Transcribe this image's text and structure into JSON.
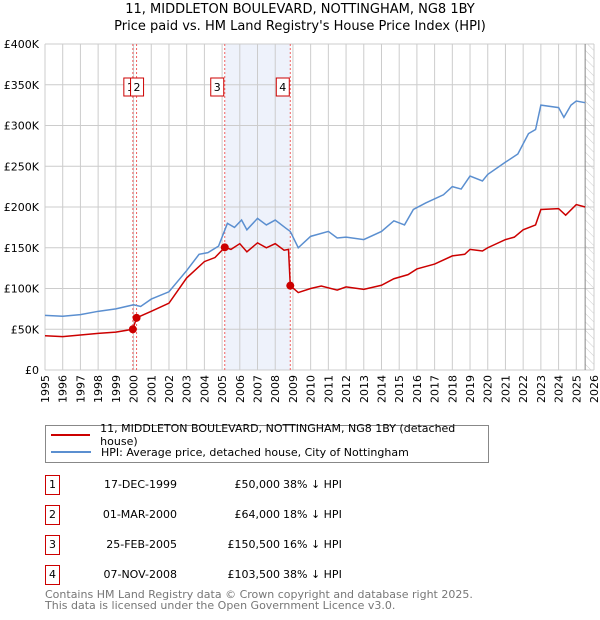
{
  "chart_data": {
    "type": "line",
    "title": "11, MIDDLETON BOULEVARD, NOTTINGHAM, NG8 1BY",
    "subtitle": "Price paid vs. HM Land Registry's House Price Index (HPI)",
    "xlim": [
      1995,
      2026
    ],
    "ylim": [
      0,
      400000
    ],
    "xticks": [
      "1995",
      "1996",
      "1997",
      "1998",
      "1999",
      "2000",
      "2001",
      "2002",
      "2003",
      "2004",
      "2005",
      "2006",
      "2007",
      "2008",
      "2009",
      "2010",
      "2011",
      "2012",
      "2013",
      "2014",
      "2015",
      "2016",
      "2017",
      "2018",
      "2019",
      "2020",
      "2021",
      "2022",
      "2023",
      "2024",
      "2025",
      "2026"
    ],
    "yticks": [
      {
        "v": 0,
        "label": "£0"
      },
      {
        "v": 50000,
        "label": "£50K"
      },
      {
        "v": 100000,
        "label": "£100K"
      },
      {
        "v": 150000,
        "label": "£150K"
      },
      {
        "v": 200000,
        "label": "£200K"
      },
      {
        "v": 250000,
        "label": "£250K"
      },
      {
        "v": 300000,
        "label": "£300K"
      },
      {
        "v": 350000,
        "label": "£350K"
      },
      {
        "v": 400000,
        "label": "£400K"
      }
    ],
    "grid": true,
    "series": [
      {
        "name": "11, MIDDLETON BOULEVARD, NOTTINGHAM, NG8 1BY (detached house)",
        "color": "#cc0000",
        "points": [
          [
            1995,
            42000
          ],
          [
            1996,
            41000
          ],
          [
            1997,
            43000
          ],
          [
            1998,
            45000
          ],
          [
            1999,
            46500
          ],
          [
            1999.96,
            50000
          ],
          [
            2000.17,
            64000
          ],
          [
            2001,
            72000
          ],
          [
            2002,
            82000
          ],
          [
            2003,
            113000
          ],
          [
            2004,
            133000
          ],
          [
            2004.6,
            138000
          ],
          [
            2005.15,
            150500
          ],
          [
            2005.5,
            148000
          ],
          [
            2006,
            155000
          ],
          [
            2006.4,
            145000
          ],
          [
            2007,
            156000
          ],
          [
            2007.5,
            150000
          ],
          [
            2008,
            155000
          ],
          [
            2008.5,
            147000
          ],
          [
            2008.75,
            148000
          ],
          [
            2008.85,
            103500
          ],
          [
            2009.3,
            95000
          ],
          [
            2010,
            100000
          ],
          [
            2010.6,
            103000
          ],
          [
            2011.5,
            98000
          ],
          [
            2012,
            102000
          ],
          [
            2013,
            99000
          ],
          [
            2014,
            104000
          ],
          [
            2014.7,
            112000
          ],
          [
            2015.5,
            117000
          ],
          [
            2016,
            124000
          ],
          [
            2017,
            130000
          ],
          [
            2018,
            140000
          ],
          [
            2018.7,
            142000
          ],
          [
            2019,
            148000
          ],
          [
            2019.7,
            146000
          ],
          [
            2020,
            150000
          ],
          [
            2021,
            160000
          ],
          [
            2021.5,
            163000
          ],
          [
            2022,
            172000
          ],
          [
            2022.7,
            178000
          ],
          [
            2023,
            197000
          ],
          [
            2024,
            198000
          ],
          [
            2024.4,
            190000
          ],
          [
            2025,
            203000
          ],
          [
            2025.5,
            200000
          ]
        ]
      },
      {
        "name": "HPI: Average price, detached house, City of Nottingham",
        "color": "#5b8fd0",
        "points": [
          [
            1995,
            67000
          ],
          [
            1996,
            66000
          ],
          [
            1997,
            68000
          ],
          [
            1998,
            72000
          ],
          [
            1999,
            75000
          ],
          [
            2000,
            80000
          ],
          [
            2000.4,
            78000
          ],
          [
            2001,
            87000
          ],
          [
            2002,
            96000
          ],
          [
            2003,
            122000
          ],
          [
            2003.7,
            142000
          ],
          [
            2004.2,
            144000
          ],
          [
            2004.8,
            152000
          ],
          [
            2005.3,
            180000
          ],
          [
            2005.7,
            175000
          ],
          [
            2006.1,
            184000
          ],
          [
            2006.4,
            172000
          ],
          [
            2007,
            186000
          ],
          [
            2007.5,
            178000
          ],
          [
            2008,
            184000
          ],
          [
            2008.6,
            174000
          ],
          [
            2008.85,
            170000
          ],
          [
            2009.3,
            150000
          ],
          [
            2010,
            164000
          ],
          [
            2011,
            170000
          ],
          [
            2011.5,
            162000
          ],
          [
            2012,
            163000
          ],
          [
            2013,
            160000
          ],
          [
            2014,
            170000
          ],
          [
            2014.7,
            183000
          ],
          [
            2015.3,
            178000
          ],
          [
            2015.8,
            197000
          ],
          [
            2016.5,
            205000
          ],
          [
            2017.5,
            215000
          ],
          [
            2018,
            225000
          ],
          [
            2018.5,
            222000
          ],
          [
            2019,
            238000
          ],
          [
            2019.7,
            232000
          ],
          [
            2020,
            240000
          ],
          [
            2021,
            255000
          ],
          [
            2021.7,
            265000
          ],
          [
            2022.3,
            290000
          ],
          [
            2022.7,
            295000
          ],
          [
            2023,
            325000
          ],
          [
            2024,
            322000
          ],
          [
            2024.3,
            310000
          ],
          [
            2024.7,
            325000
          ],
          [
            2025,
            330000
          ],
          [
            2025.5,
            328000
          ]
        ]
      }
    ],
    "sales": [
      {
        "n": "1",
        "x": 1999.96,
        "v": 50000
      },
      {
        "n": "2",
        "x": 2000.17,
        "v": 64000
      },
      {
        "n": "3",
        "x": 2005.15,
        "v": 150500
      },
      {
        "n": "4",
        "x": 2008.85,
        "v": 103500
      }
    ],
    "highlight": [
      2005.15,
      2008.85
    ],
    "forecast_from": 2025.5,
    "legend_position": "below"
  },
  "table": [
    {
      "n": "1",
      "date": "17-DEC-1999",
      "price": "£50,000",
      "hpi": "38% ↓ HPI"
    },
    {
      "n": "2",
      "date": "01-MAR-2000",
      "price": "£64,000",
      "hpi": "18% ↓ HPI"
    },
    {
      "n": "3",
      "date": "25-FEB-2005",
      "price": "£150,500",
      "hpi": "16% ↓ HPI"
    },
    {
      "n": "4",
      "date": "07-NOV-2008",
      "price": "£103,500",
      "hpi": "38% ↓ HPI"
    }
  ],
  "footer": {
    "line1": "Contains HM Land Registry data © Crown copyright and database right 2025.",
    "line2": "This data is licensed under the Open Government Licence v3.0."
  }
}
